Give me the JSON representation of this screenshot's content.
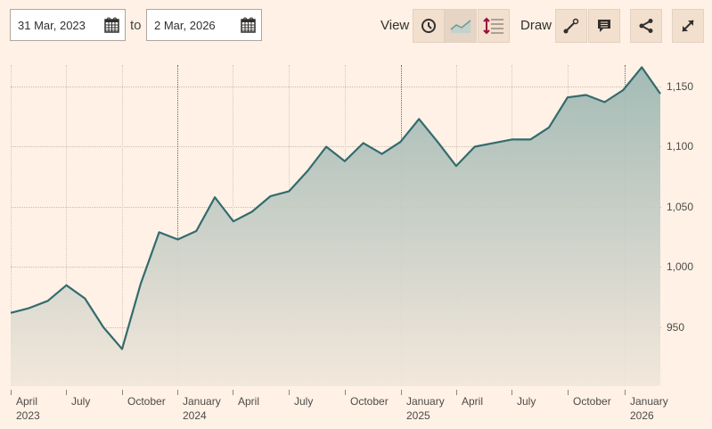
{
  "toolbar": {
    "from_date": "31 Mar, 2023",
    "to_label": "to",
    "to_date": "2 Mar, 2026",
    "view_label": "View",
    "draw_label": "Draw",
    "buttons": {
      "clock": "clock-icon",
      "line": "line-chart-icon",
      "scale": "scale-icon",
      "draw_line": "draw-line-icon",
      "annotate": "comment-icon",
      "share": "share-icon",
      "expand": "expand-icon"
    }
  },
  "y_axis": [
    "1,150",
    "1,100",
    "1,050",
    "1,000",
    "950"
  ],
  "x_axis": [
    {
      "label": "April",
      "year": "2023"
    },
    {
      "label": "July",
      "year": ""
    },
    {
      "label": "October",
      "year": ""
    },
    {
      "label": "January",
      "year": "2024"
    },
    {
      "label": "April",
      "year": ""
    },
    {
      "label": "July",
      "year": ""
    },
    {
      "label": "October",
      "year": ""
    },
    {
      "label": "January",
      "year": "2025"
    },
    {
      "label": "April",
      "year": ""
    },
    {
      "label": "July",
      "year": ""
    },
    {
      "label": "October",
      "year": ""
    },
    {
      "label": "January",
      "year": "2026"
    }
  ],
  "colors": {
    "line": "#336b6e",
    "fill_top": "#9fb8b3",
    "fill_bottom": "#f2e7db",
    "background": "#fff1e5"
  },
  "chart_data": {
    "type": "area",
    "title": "",
    "xlabel": "",
    "ylabel": "",
    "ylim": [
      905,
      1170
    ],
    "y_ticks": [
      950,
      1000,
      1050,
      1100,
      1150
    ],
    "x_tick_labels": [
      "April 2023",
      "July",
      "October",
      "January 2024",
      "April",
      "July",
      "October",
      "January 2025",
      "April",
      "July",
      "October",
      "January 2026"
    ],
    "grid": true,
    "x": [
      "2023-03-31",
      "2023-04-30",
      "2023-05-31",
      "2023-06-30",
      "2023-07-31",
      "2023-08-31",
      "2023-09-30",
      "2023-10-31",
      "2023-11-30",
      "2023-12-31",
      "2024-01-31",
      "2024-02-29",
      "2024-03-31",
      "2024-04-30",
      "2024-05-31",
      "2024-06-30",
      "2024-07-31",
      "2024-08-31",
      "2024-09-30",
      "2024-10-31",
      "2024-11-30",
      "2024-12-31",
      "2025-01-31",
      "2025-02-28",
      "2025-03-31",
      "2025-04-30",
      "2025-05-31",
      "2025-06-30",
      "2025-07-31",
      "2025-08-31",
      "2025-09-30",
      "2025-10-31",
      "2025-11-30",
      "2025-12-31",
      "2026-01-31",
      "2026-03-02"
    ],
    "values": [
      962,
      966,
      972,
      985,
      974,
      950,
      932,
      986,
      1029,
      1023,
      1030,
      1058,
      1038,
      1046,
      1059,
      1063,
      1080,
      1100,
      1088,
      1103,
      1094,
      1104,
      1123,
      1104,
      1084,
      1100,
      1103,
      1106,
      1106,
      1116,
      1141,
      1143,
      1137,
      1147,
      1166,
      1144
    ]
  }
}
